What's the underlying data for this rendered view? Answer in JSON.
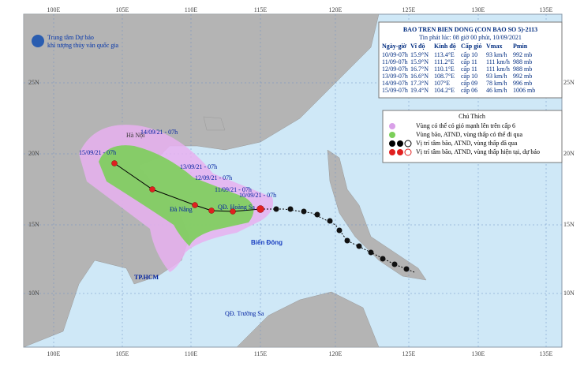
{
  "header": {
    "agency_line1": "Trung tâm Dự báo",
    "agency_line2": "khí tượng thủy văn quốc gia"
  },
  "axes": {
    "lon_labels": [
      "100E",
      "105E",
      "110E",
      "115E",
      "120E",
      "125E",
      "130E",
      "135E"
    ],
    "lat_labels": [
      "25N",
      "20N",
      "15N",
      "10N"
    ]
  },
  "bulletin": {
    "title": "BAO TREN BIEN DONG (CON BAO SO 5)-2113",
    "issued": "Tin phát lúc: 08 giờ 00 phút, 10/09/2021",
    "columns": [
      "Ngày-giờ",
      "Vĩ độ",
      "Kinh độ",
      "Cấp gió",
      "Vmax",
      "Pmin"
    ],
    "rows": [
      [
        "10/09-07h",
        "15.9°N",
        "113.4°E",
        "cấp 10",
        "93 km/h",
        "992 mb"
      ],
      [
        "11/09-07h",
        "15.9°N",
        "111.2°E",
        "cấp 11",
        "111 km/h",
        "988 mb"
      ],
      [
        "12/09-07h",
        "16.7°N",
        "110.1°E",
        "cấp 11",
        "111 km/h",
        "988 mb"
      ],
      [
        "13/09-07h",
        "16.6°N",
        "108.7°E",
        "cấp 10",
        "93 km/h",
        "992 mb"
      ],
      [
        "14/09-07h",
        "17.3°N",
        "107°E",
        "cấp 09",
        "78 km/h",
        "996 mb"
      ],
      [
        "15/09-07h",
        "19.4°N",
        "104.2°E",
        "cấp 06",
        "46 km/h",
        "1006 mb"
      ]
    ]
  },
  "legend": {
    "title": "Chú Thích",
    "items": [
      "Vùng có thể có gió mạnh lên trên cấp 6",
      "Vùng bão, ATND, vùng thấp có thể đi qua",
      "Vị trí tâm bão, ATND, vùng thấp đã qua",
      "Vị trí tâm bão, ATND, vùng thấp hiện tại, dự báo"
    ]
  },
  "places": [
    "Hà Nội",
    "QĐ. Hoàng Sa",
    "Đà Nẵng",
    "Biển Đông",
    "TP.HCM",
    "QĐ. Trường Sa"
  ],
  "forecast_labels": [
    "15/09/21 - 07h",
    "14/09/21 - 07h",
    "13/09/21 - 07h",
    "12/09/21 - 07h",
    "11/09/21 - 07h",
    "10/09/21 - 07h"
  ]
}
